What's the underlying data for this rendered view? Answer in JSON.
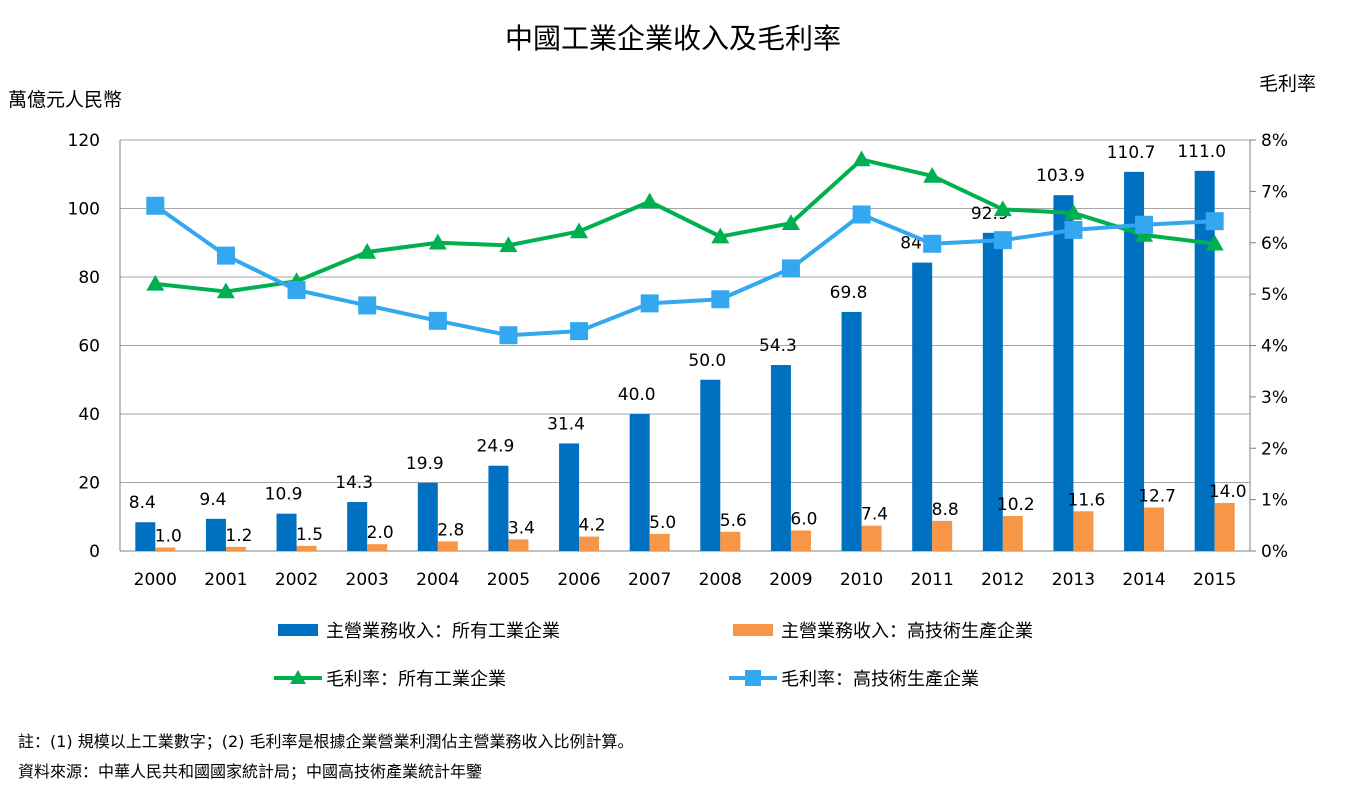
{
  "chart_data": {
    "type": "bar",
    "title": "中國工業企業收入及毛利率",
    "ylabel": "萬億元人民幣",
    "y2label": "毛利率",
    "categories": [
      "2000",
      "2001",
      "2002",
      "2003",
      "2004",
      "2005",
      "2006",
      "2007",
      "2008",
      "2009",
      "2010",
      "2011",
      "2012",
      "2013",
      "2014",
      "2015"
    ],
    "ylim": [
      0,
      120
    ],
    "y2lim": [
      0,
      8
    ],
    "y_ticks": [
      "0",
      "20",
      "40",
      "60",
      "80",
      "100",
      "120"
    ],
    "y2_ticks": [
      "0%",
      "1%",
      "2%",
      "3%",
      "4%",
      "5%",
      "6%",
      "7%",
      "8%"
    ],
    "grid": true,
    "legend_position": "bottom",
    "series": [
      {
        "name": "主營業務收入：所有工業企業",
        "kind": "bar",
        "axis": "left",
        "color": "#0070c0",
        "values": [
          8.4,
          9.4,
          10.9,
          14.3,
          19.9,
          24.9,
          31.4,
          40.0,
          50.0,
          54.3,
          69.8,
          84.2,
          92.9,
          103.9,
          110.7,
          111.0
        ],
        "labels": [
          "8.4",
          "9.4",
          "10.9",
          "14.3",
          "19.9",
          "24.9",
          "31.4",
          "40.0",
          "50.0",
          "54.3",
          "69.8",
          "84.2",
          "92.9",
          "103.9",
          "110.7",
          "111.0"
        ]
      },
      {
        "name": "主營業務收入：高技術生產企業",
        "kind": "bar",
        "axis": "left",
        "color": "#f79646",
        "values": [
          1.0,
          1.2,
          1.5,
          2.0,
          2.8,
          3.4,
          4.2,
          5.0,
          5.6,
          6.0,
          7.4,
          8.8,
          10.2,
          11.6,
          12.7,
          14.0
        ],
        "labels": [
          "1.0",
          "1.2",
          "1.5",
          "2.0",
          "2.8",
          "3.4",
          "4.2",
          "5.0",
          "5.6",
          "6.0",
          "7.4",
          "8.8",
          "10.2",
          "11.6",
          "12.7",
          "14.0"
        ]
      },
      {
        "name": "毛利率：所有工業企業",
        "kind": "line",
        "marker": "triangle",
        "axis": "right",
        "color": "#00b050",
        "values": [
          5.2,
          5.05,
          5.25,
          5.82,
          6.0,
          5.95,
          6.22,
          6.8,
          6.12,
          6.38,
          7.62,
          7.3,
          6.65,
          6.58,
          6.15,
          5.98
        ]
      },
      {
        "name": "毛利率：高技術生產企業",
        "kind": "line",
        "marker": "square",
        "axis": "right",
        "color": "#33a7f0",
        "values": [
          6.72,
          5.75,
          5.08,
          4.78,
          4.48,
          4.2,
          4.28,
          4.82,
          4.9,
          5.5,
          6.55,
          5.98,
          6.05,
          6.25,
          6.35,
          6.42
        ]
      }
    ]
  },
  "notes": {
    "line1": "註：(1) 規模以上工業數字；(2) 毛利率是根據企業營業利潤佔主營業務收入比例計算。",
    "line2": "資料來源：中華人民共和國國家統計局；中國高技術產業統計年鑒"
  }
}
